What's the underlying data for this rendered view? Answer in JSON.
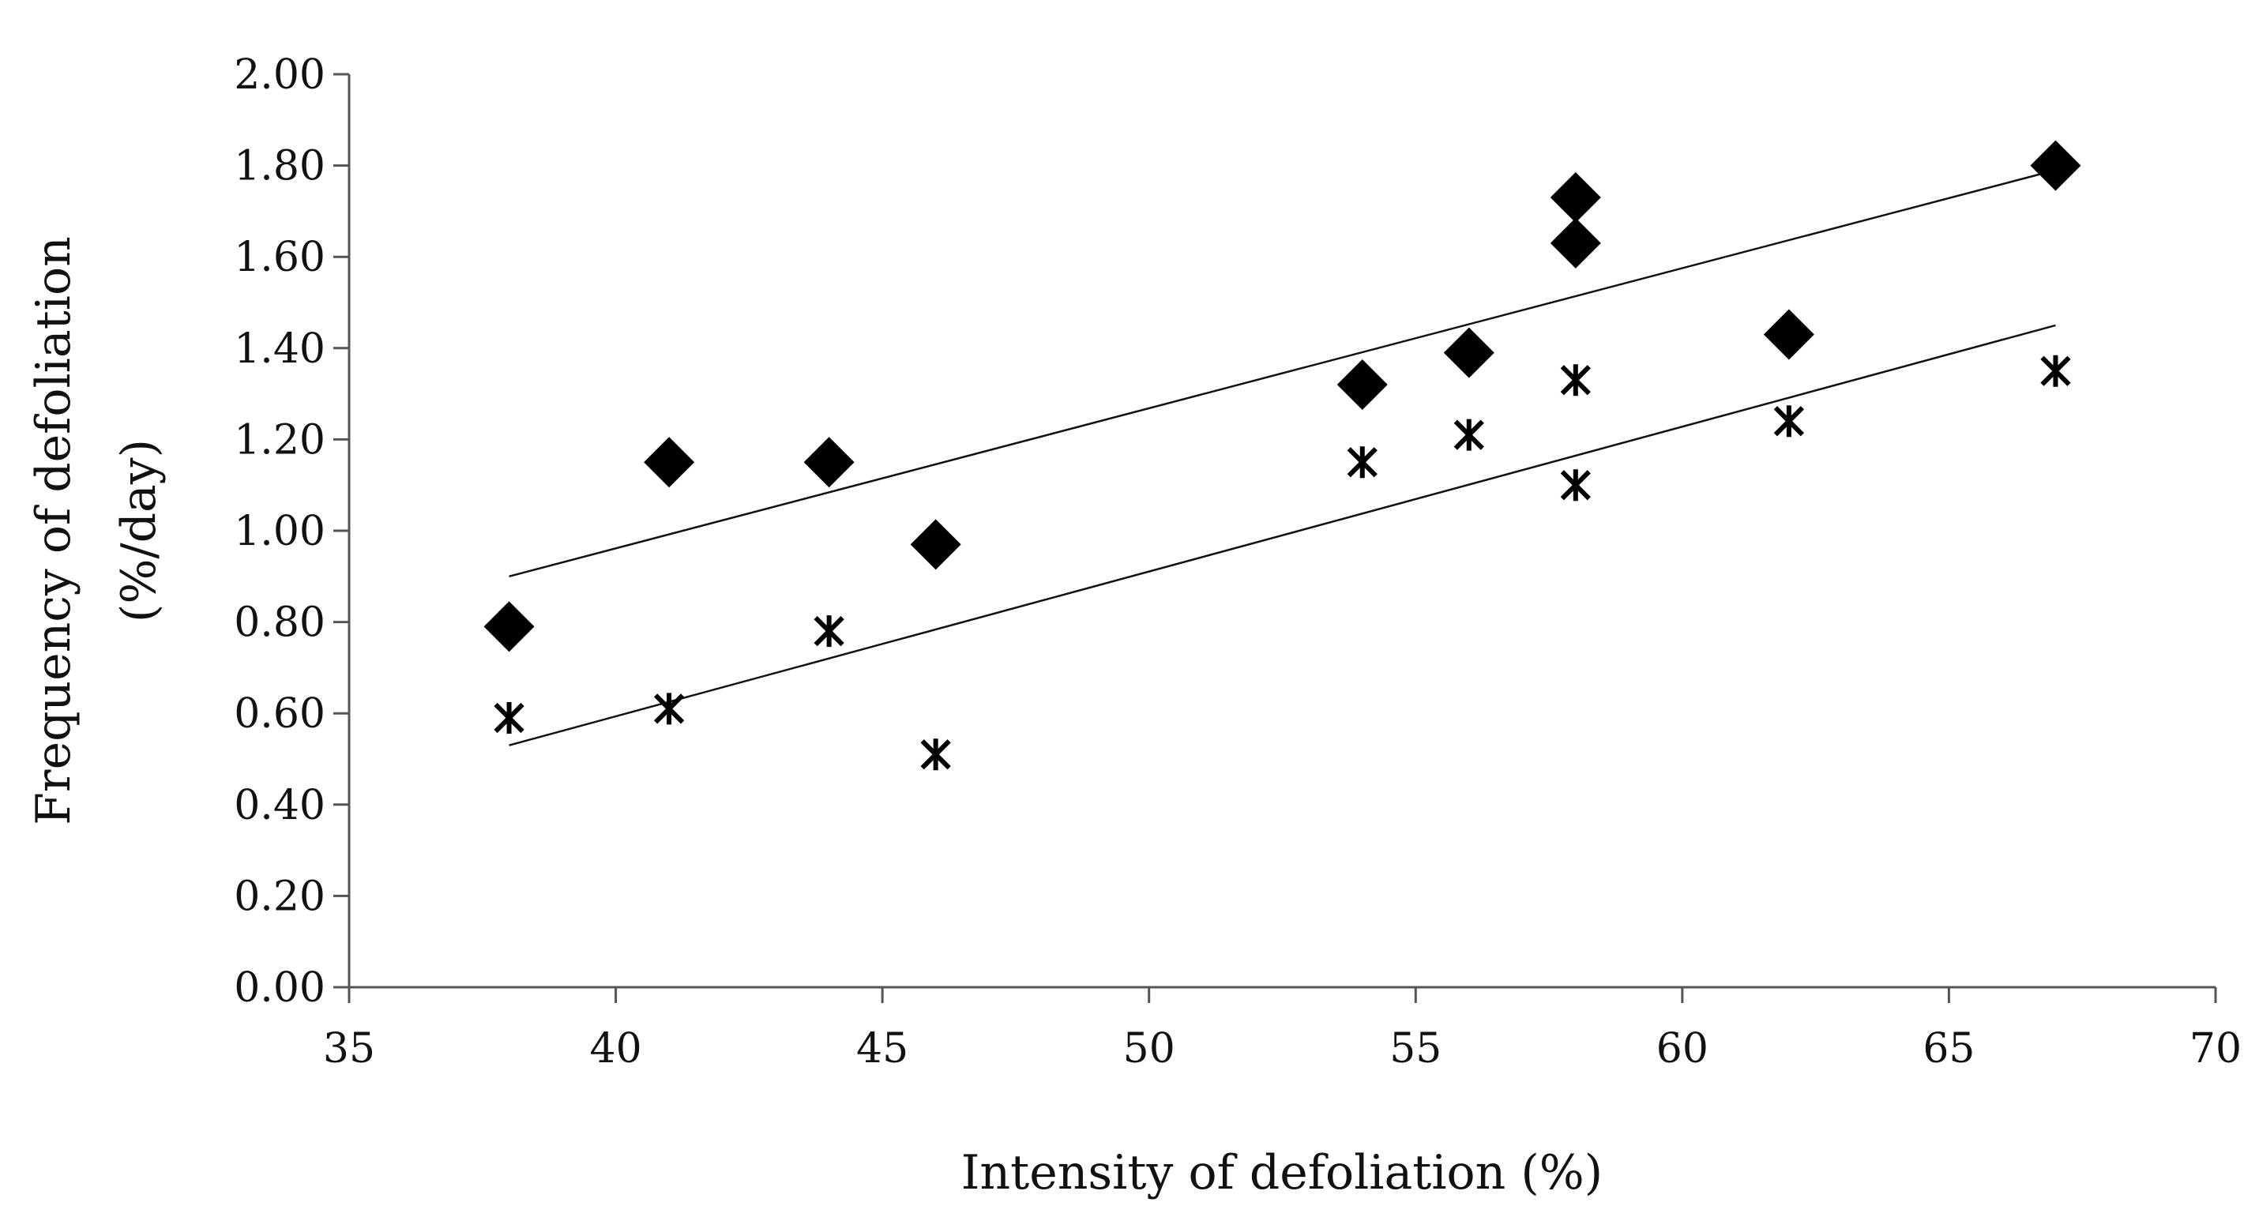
{
  "chart_data": {
    "type": "scatter",
    "title": "",
    "xlabel": "Intensity of defoliation  (%)",
    "ylabel": [
      "Frequency of defoliation",
      "(%/day)"
    ],
    "xlim": [
      35,
      70
    ],
    "ylim": [
      0,
      2
    ],
    "xticks": [
      35,
      40,
      45,
      50,
      55,
      60,
      65,
      70
    ],
    "xtick_labels": [
      "35",
      "40",
      "45",
      "50",
      "55",
      "60",
      "65",
      "70"
    ],
    "yticks": [
      0,
      0.2,
      0.4,
      0.6,
      0.8,
      1.0,
      1.2,
      1.4,
      1.6,
      1.8,
      2.0
    ],
    "ytick_labels": [
      "0.00",
      "0.20",
      "0.40",
      "0.60",
      "0.80",
      "1.00",
      "1.20",
      "1.40",
      "1.60",
      "1.80",
      "2.00"
    ],
    "grid": false,
    "legend": "none",
    "series": [
      {
        "name": "diamond series",
        "marker": "diamond",
        "color": "#000000",
        "points": [
          [
            38,
            0.79
          ],
          [
            41,
            1.15
          ],
          [
            44,
            1.15
          ],
          [
            46,
            0.97
          ],
          [
            54,
            1.32
          ],
          [
            56,
            1.39
          ],
          [
            58,
            1.73
          ],
          [
            58,
            1.63
          ],
          [
            62,
            1.43
          ],
          [
            67,
            1.8
          ]
        ],
        "trendline": {
          "x": [
            38,
            67
          ],
          "y": [
            0.9,
            1.79
          ]
        }
      },
      {
        "name": "star series",
        "marker": "asterisk",
        "color": "#000000",
        "points": [
          [
            38,
            0.59
          ],
          [
            41,
            0.61
          ],
          [
            44,
            0.78
          ],
          [
            46,
            0.51
          ],
          [
            54,
            1.15
          ],
          [
            56,
            1.21
          ],
          [
            58,
            1.33
          ],
          [
            58,
            1.1
          ],
          [
            62,
            1.24
          ],
          [
            67,
            1.35
          ]
        ],
        "trendline": {
          "x": [
            38,
            67
          ],
          "y": [
            0.53,
            1.45
          ]
        }
      }
    ]
  }
}
